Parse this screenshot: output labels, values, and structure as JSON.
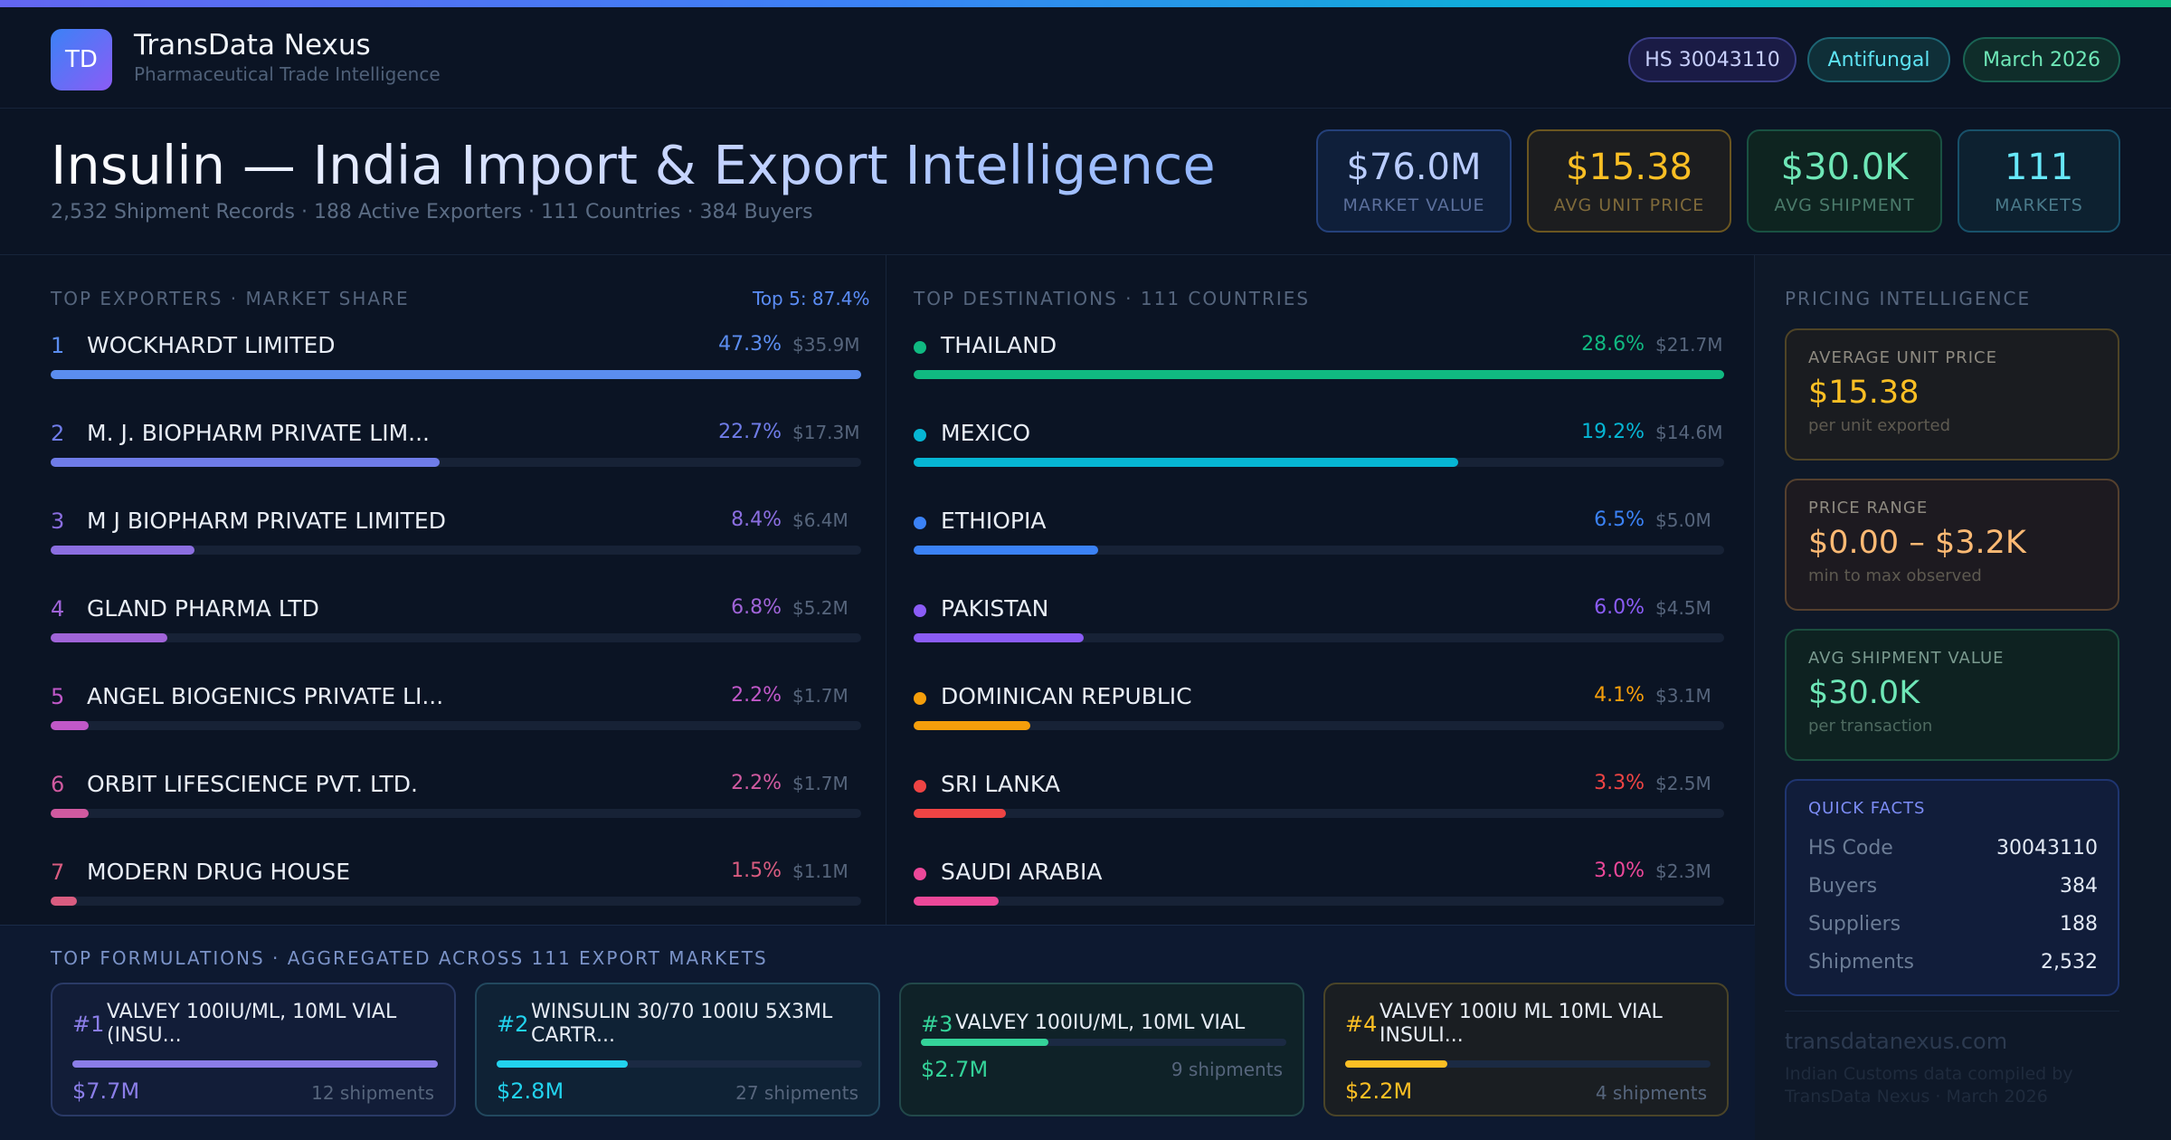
{
  "brand": {
    "logo": "TD",
    "name": "TransData Nexus",
    "tagline": "Pharmaceutical Trade Intelligence"
  },
  "pills": {
    "hs": "HS 30043110",
    "category": "Antifungal",
    "period": "March 2026"
  },
  "title": {
    "main": "Insulin — India Import & Export Intelligence",
    "sub": "2,532 Shipment Records · 188 Active Exporters · 111 Countries · 384 Buyers"
  },
  "kpis": [
    {
      "value": "$76.0M",
      "label": "MARKET VALUE",
      "color": "#b9ccff"
    },
    {
      "value": "$15.38",
      "label": "AVG UNIT PRICE",
      "color": "#fbbf24"
    },
    {
      "value": "$30.0K",
      "label": "AVG SHIPMENT",
      "color": "#6ee7b7"
    },
    {
      "value": "111",
      "label": "MARKETS",
      "color": "#67e8f9"
    }
  ],
  "exporters": {
    "title": "TOP EXPORTERS · MARKET SHARE",
    "badge": "Top 5: 87.4%",
    "items": [
      {
        "rank": "1",
        "name": "WOCKHARDT LIMITED",
        "pct": "47.3%",
        "amount": "$35.9M",
        "share": 1.0,
        "color": "#5b8def"
      },
      {
        "rank": "2",
        "name": "M. J. BIOPHARM PRIVATE LIM...",
        "pct": "22.7%",
        "amount": "$17.3M",
        "share": 0.48,
        "color": "#6f7ce8"
      },
      {
        "rank": "3",
        "name": "M J BIOPHARM PRIVATE LIMITED",
        "pct": "8.4%",
        "amount": "$6.4M",
        "share": 0.178,
        "color": "#8b6ee0"
      },
      {
        "rank": "4",
        "name": "GLAND PHARMA LTD",
        "pct": "6.8%",
        "amount": "$5.2M",
        "share": 0.144,
        "color": "#a064d8"
      },
      {
        "rank": "5",
        "name": "ANGEL BIOGENICS PRIVATE LI...",
        "pct": "2.2%",
        "amount": "$1.7M",
        "share": 0.047,
        "color": "#c058c8"
      },
      {
        "rank": "6",
        "name": "ORBIT LIFESCIENCE PVT. LTD.",
        "pct": "2.2%",
        "amount": "$1.7M",
        "share": 0.047,
        "color": "#d05aa0"
      },
      {
        "rank": "7",
        "name": "MODERN DRUG HOUSE",
        "pct": "1.5%",
        "amount": "$1.1M",
        "share": 0.032,
        "color": "#d95c80"
      }
    ]
  },
  "destinations": {
    "title": "TOP DESTINATIONS · 111 COUNTRIES",
    "items": [
      {
        "name": "THAILAND",
        "pct": "28.6%",
        "amount": "$21.7M",
        "share": 1.0,
        "color": "#10b981"
      },
      {
        "name": "MEXICO",
        "pct": "19.2%",
        "amount": "$14.6M",
        "share": 0.672,
        "color": "#06b6d4"
      },
      {
        "name": "ETHIOPIA",
        "pct": "6.5%",
        "amount": "$5.0M",
        "share": 0.228,
        "color": "#3b82f6"
      },
      {
        "name": "PAKISTAN",
        "pct": "6.0%",
        "amount": "$4.5M",
        "share": 0.21,
        "color": "#8b5cf6"
      },
      {
        "name": "DOMINICAN REPUBLIC",
        "pct": "4.1%",
        "amount": "$3.1M",
        "share": 0.144,
        "color": "#f59e0b"
      },
      {
        "name": "SRI LANKA",
        "pct": "3.3%",
        "amount": "$2.5M",
        "share": 0.114,
        "color": "#ef4444"
      },
      {
        "name": "SAUDI ARABIA",
        "pct": "3.0%",
        "amount": "$2.3M",
        "share": 0.105,
        "color": "#ec4899"
      }
    ]
  },
  "pricing": {
    "title": "PRICING INTELLIGENCE",
    "cards": [
      {
        "label": "AVERAGE UNIT PRICE",
        "value": "$15.38",
        "sub": "per unit exported"
      },
      {
        "label": "PRICE RANGE",
        "value": "$0.00 – $3.2K",
        "sub": "min to max observed"
      },
      {
        "label": "AVG SHIPMENT VALUE",
        "value": "$30.0K",
        "sub": "per transaction"
      }
    ],
    "quick_facts": {
      "title": "QUICK FACTS",
      "rows": [
        {
          "key": "HS Code",
          "value": "30043110"
        },
        {
          "key": "Buyers",
          "value": "384"
        },
        {
          "key": "Suppliers",
          "value": "188"
        },
        {
          "key": "Shipments",
          "value": "2,532"
        }
      ]
    },
    "site": "transdatanexus.com",
    "footnote": "Indian Customs data compiled by TransData Nexus · March 2026"
  },
  "formulations": {
    "title": "TOP FORMULATIONS · AGGREGATED ACROSS 111 EXPORT MARKETS",
    "items": [
      {
        "rank": "#1",
        "name": "VALVEY 100IU/ML, 10ML VIAL (INSU...",
        "value": "$7.7M",
        "shipments": "12 shipments",
        "share": 1.0,
        "color": "#8b7ee8"
      },
      {
        "rank": "#2",
        "name": "WINSULIN 30/70 100IU 5X3ML CARTR...",
        "value": "$2.8M",
        "shipments": "27 shipments",
        "share": 0.36,
        "color": "#22d3ee"
      },
      {
        "rank": "#3",
        "name": "VALVEY 100IU/ML, 10ML VIAL",
        "value": "$2.7M",
        "shipments": "9 shipments",
        "share": 0.35,
        "color": "#34d399"
      },
      {
        "rank": "#4",
        "name": "VALVEY 100IU ML 10ML VIAL INSULI...",
        "value": "$2.2M",
        "shipments": "4 shipments",
        "share": 0.28,
        "color": "#fbbf24"
      }
    ]
  }
}
